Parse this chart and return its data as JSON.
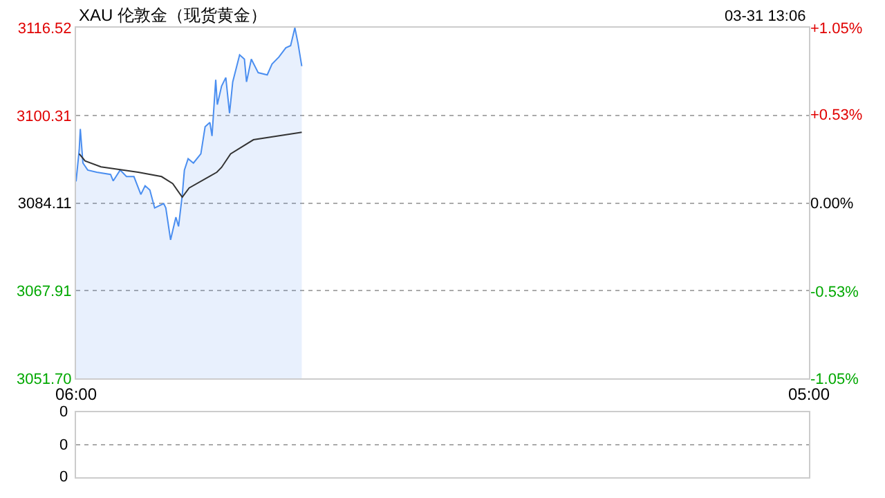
{
  "chart_data": [
    {
      "type": "area",
      "title": "XAU 伦敦金（现货黄金）",
      "annotations": [
        "03-31 13:06"
      ],
      "xlim": [
        "--03-31T06:00",
        "--04-01T05:00"
      ],
      "xticks": [
        {
          "value": "--03-31T06:00",
          "label": "06:00"
        },
        {
          "value": "--04-01T05:00",
          "label": "05:00"
        }
      ],
      "ylim": [
        3051.7,
        3116.52
      ],
      "yticks": [
        {
          "value": 3051.7,
          "label": "3051.70"
        },
        3067.91,
        3084.11,
        3100.31,
        3116.52
      ],
      "y2lim": [
        -1.05,
        1.05
      ],
      "y2ticks": [
        {
          "value": -1.05,
          "label": "-1.05%"
        },
        {
          "value": -0.53,
          "label": "-0.53%"
        },
        {
          "value": 0,
          "label": "0.00%"
        },
        {
          "value": 0.53,
          "label": "+0.53%"
        },
        {
          "value": 1.05,
          "label": "+1.05%"
        }
      ],
      "grid": "y",
      "line_style": "solid",
      "marker": "none",
      "series": [
        {
          "color": "#4a8ef0",
          "x": [
            "--03-31T06:00",
            "--03-31T06:06",
            "--03-31T06:08",
            "--03-31T06:13",
            "--03-31T06:22",
            "--03-31T06:39",
            "--03-31T07:05",
            "--03-31T07:10",
            "--03-31T07:23",
            "--03-31T07:35",
            "--03-31T07:49",
            "--03-31T08:02",
            "--03-31T08:10",
            "--03-31T08:19",
            "--03-31T08:28",
            "--03-31T08:45",
            "--03-31T08:49",
            "--03-31T08:53",
            "--03-31T08:58",
            "--03-31T09:02",
            "--03-31T09:08",
            "--03-31T09:13",
            "--03-31T09:20",
            "--03-31T09:24",
            "--03-31T09:31",
            "--03-31T09:41",
            "--03-31T09:55",
            "--03-31T10:03",
            "--03-31T10:12",
            "--03-31T10:16",
            "--03-31T10:23",
            "--03-31T10:26",
            "--03-31T10:34",
            "--03-31T10:42",
            "--03-31T10:49",
            "--03-31T10:55",
            "--03-31T11:08",
            "--03-31T11:17",
            "--03-31T11:21",
            "--03-31T11:30",
            "--03-31T11:43",
            "--03-31T12:00",
            "--03-31T12:09",
            "--03-31T12:22",
            "--03-31T12:35",
            "--03-31T12:44",
            "--03-31T12:52",
            "--03-31T12:58",
            "--03-31T13:05"
          ],
          "values": [
            3088.1,
            3094.0,
            3097.8,
            3091.5,
            3090.2,
            3089.8,
            3089.4,
            3088.2,
            3090.2,
            3089.0,
            3089.0,
            3085.7,
            3087.3,
            3086.5,
            3083.2,
            3084.0,
            3083.2,
            3080.6,
            3077.3,
            3079.0,
            3081.5,
            3079.8,
            3085.6,
            3090.2,
            3092.3,
            3091.5,
            3093.2,
            3098.2,
            3099.0,
            3096.5,
            3106.9,
            3102.3,
            3105.7,
            3107.3,
            3100.7,
            3106.5,
            3111.5,
            3110.7,
            3106.5,
            3110.7,
            3108.2,
            3107.8,
            3109.8,
            3111.1,
            3112.8,
            3113.2,
            3116.5,
            3113.6,
            3109.4
          ]
        },
        {
          "type": "line",
          "color": "#333333",
          "x": [
            "--03-31T06:06",
            "--03-31T06:17",
            "--03-31T06:47",
            "--03-31T07:57",
            "--03-31T08:41",
            "--03-31T09:02",
            "--03-31T09:20",
            "--03-31T09:33",
            "--03-31T10:25",
            "--03-31T10:34",
            "--03-31T10:51",
            "--03-31T11:34",
            "--03-31T13:05"
          ],
          "values": [
            3093.2,
            3091.9,
            3090.8,
            3089.8,
            3089.0,
            3087.7,
            3085.2,
            3086.9,
            3089.8,
            3090.7,
            3093.2,
            3095.8,
            3097.2
          ]
        }
      ]
    },
    {
      "type": "other",
      "annotations": [
        "0",
        "0",
        "0"
      ]
    }
  ]
}
